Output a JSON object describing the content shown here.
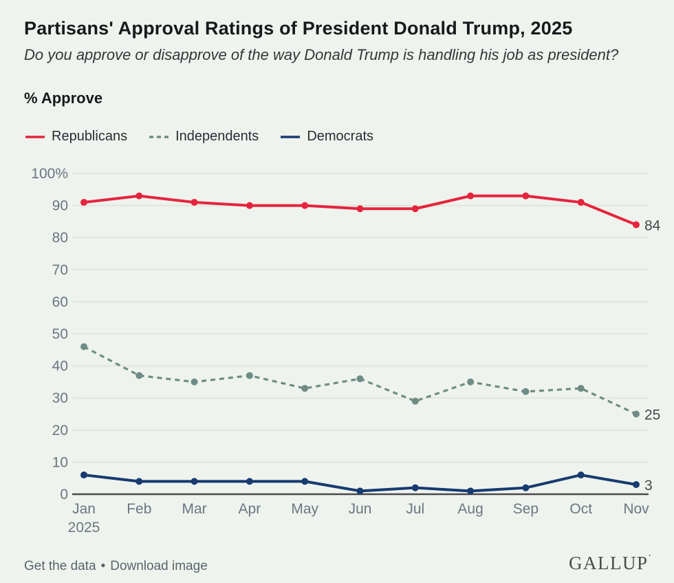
{
  "header": {
    "title": "Partisans' Approval Ratings of President Donald Trump, 2025",
    "subtitle": "Do you approve or disapprove of the way Donald Trump is handling his job as president?",
    "measure_label": "% Approve"
  },
  "legend": [
    {
      "label": "Republicans",
      "color": "#e5243d",
      "style": "solid"
    },
    {
      "label": "Independents",
      "color": "#6e8c85",
      "style": "dashed"
    },
    {
      "label": "Democrats",
      "color": "#173a70",
      "style": "solid"
    }
  ],
  "chart_data": {
    "type": "line",
    "categories": [
      "Jan",
      "Feb",
      "Mar",
      "Apr",
      "May",
      "Jun",
      "Jul",
      "Aug",
      "Sep",
      "Oct",
      "Nov"
    ],
    "x_year_label": "2025",
    "series": [
      {
        "name": "Republicans",
        "color": "#e5243d",
        "dash": false,
        "values": [
          91,
          93,
          91,
          90,
          90,
          89,
          89,
          93,
          93,
          91,
          84
        ],
        "end_label": "84"
      },
      {
        "name": "Independents",
        "color": "#6e8c85",
        "dash": true,
        "values": [
          46,
          37,
          35,
          37,
          33,
          36,
          29,
          35,
          32,
          33,
          25
        ],
        "end_label": "25"
      },
      {
        "name": "Democrats",
        "color": "#173a70",
        "dash": false,
        "values": [
          6,
          4,
          4,
          4,
          4,
          1,
          2,
          1,
          2,
          6,
          3
        ],
        "end_label": "3"
      }
    ],
    "ylim": [
      0,
      100
    ],
    "ytick_step": 10,
    "ytick_top_label": "100%",
    "grid": true,
    "legend_position": "top"
  },
  "style": {
    "background": "#eef3ed",
    "gridline_color": "#dde3da",
    "axis_line_color": "#47494b",
    "axis_label_color": "#6b7682",
    "end_label_color": "#46494d"
  },
  "footer": {
    "links": [
      "Get the data",
      "Download image"
    ],
    "separator": "•",
    "brand": "GALLUP",
    "brand_mark": "’"
  }
}
